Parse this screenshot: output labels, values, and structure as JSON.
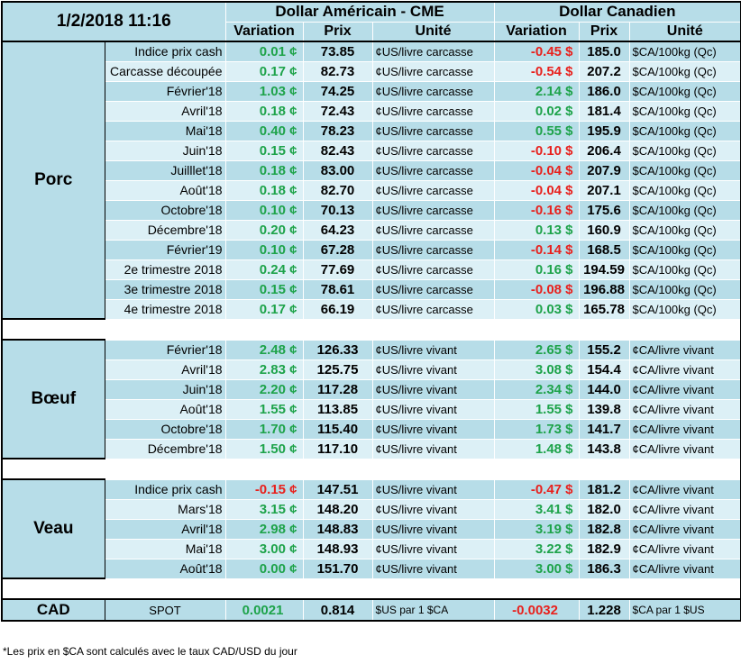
{
  "header": {
    "date": "1/2/2018 11:16",
    "us_group": "Dollar Américain - CME",
    "ca_group": "Dollar Canadien",
    "col_variation": "Variation",
    "col_prix": "Prix",
    "col_unite": "Unité"
  },
  "colors": {
    "row_dark": "#b7dde8",
    "row_light": "#dcf0f6",
    "positive": "#1ea34a",
    "negative": "#e8211d"
  },
  "sections": [
    {
      "name": "Porc",
      "rows": [
        {
          "label": "Indice prix cash",
          "us_var": "0.01 ¢",
          "us_prix": "73.85",
          "us_unit": "¢US/livre carcasse",
          "ca_var": "-0.45 $",
          "ca_prix": "185.0",
          "ca_unit": "$CA/100kg (Qc)"
        },
        {
          "label": "Carcasse découpée",
          "us_var": "0.17 ¢",
          "us_prix": "82.73",
          "us_unit": "¢US/livre carcasse",
          "ca_var": "-0.54 $",
          "ca_prix": "207.2",
          "ca_unit": "$CA/100kg (Qc)"
        },
        {
          "label": "Février'18",
          "us_var": "1.03 ¢",
          "us_prix": "74.25",
          "us_unit": "¢US/livre carcasse",
          "ca_var": "2.14 $",
          "ca_prix": "186.0",
          "ca_unit": "$CA/100kg (Qc)"
        },
        {
          "label": "Avril'18",
          "us_var": "0.18 ¢",
          "us_prix": "72.43",
          "us_unit": "¢US/livre carcasse",
          "ca_var": "0.02 $",
          "ca_prix": "181.4",
          "ca_unit": "$CA/100kg (Qc)"
        },
        {
          "label": "Mai'18",
          "us_var": "0.40 ¢",
          "us_prix": "78.23",
          "us_unit": "¢US/livre carcasse",
          "ca_var": "0.55 $",
          "ca_prix": "195.9",
          "ca_unit": "$CA/100kg (Qc)"
        },
        {
          "label": "Juin'18",
          "us_var": "0.15 ¢",
          "us_prix": "82.43",
          "us_unit": "¢US/livre carcasse",
          "ca_var": "-0.10 $",
          "ca_prix": "206.4",
          "ca_unit": "$CA/100kg (Qc)"
        },
        {
          "label": "Juilllet'18",
          "us_var": "0.18 ¢",
          "us_prix": "83.00",
          "us_unit": "¢US/livre carcasse",
          "ca_var": "-0.04 $",
          "ca_prix": "207.9",
          "ca_unit": "$CA/100kg (Qc)"
        },
        {
          "label": "Août'18",
          "us_var": "0.18 ¢",
          "us_prix": "82.70",
          "us_unit": "¢US/livre carcasse",
          "ca_var": "-0.04 $",
          "ca_prix": "207.1",
          "ca_unit": "$CA/100kg (Qc)"
        },
        {
          "label": "Octobre'18",
          "us_var": "0.10 ¢",
          "us_prix": "70.13",
          "us_unit": "¢US/livre carcasse",
          "ca_var": "-0.16 $",
          "ca_prix": "175.6",
          "ca_unit": "$CA/100kg (Qc)"
        },
        {
          "label": "Décembre'18",
          "us_var": "0.20 ¢",
          "us_prix": "64.23",
          "us_unit": "¢US/livre carcasse",
          "ca_var": "0.13 $",
          "ca_prix": "160.9",
          "ca_unit": "$CA/100kg (Qc)"
        },
        {
          "label": "Février'19",
          "us_var": "0.10 ¢",
          "us_prix": "67.28",
          "us_unit": "¢US/livre carcasse",
          "ca_var": "-0.14 $",
          "ca_prix": "168.5",
          "ca_unit": "$CA/100kg (Qc)"
        },
        {
          "label": "2e trimestre 2018",
          "us_var": "0.24 ¢",
          "us_prix": "77.69",
          "us_unit": "¢US/livre carcasse",
          "ca_var": "0.16 $",
          "ca_prix": "194.59",
          "ca_unit": "$CA/100kg (Qc)"
        },
        {
          "label": "3e trimestre 2018",
          "us_var": "0.15 ¢",
          "us_prix": "78.61",
          "us_unit": "¢US/livre carcasse",
          "ca_var": "-0.08 $",
          "ca_prix": "196.88",
          "ca_unit": "$CA/100kg (Qc)"
        },
        {
          "label": "4e trimestre 2018",
          "us_var": "0.17 ¢",
          "us_prix": "66.19",
          "us_unit": "¢US/livre carcasse",
          "ca_var": "0.03 $",
          "ca_prix": "165.78",
          "ca_unit": "$CA/100kg (Qc)"
        }
      ]
    },
    {
      "name": "Bœuf",
      "rows": [
        {
          "label": "Février'18",
          "us_var": "2.48 ¢",
          "us_prix": "126.33",
          "us_unit": "¢US/livre vivant",
          "ca_var": "2.65 $",
          "ca_prix": "155.2",
          "ca_unit": "¢CA/livre vivant"
        },
        {
          "label": "Avril'18",
          "us_var": "2.83 ¢",
          "us_prix": "125.75",
          "us_unit": "¢US/livre vivant",
          "ca_var": "3.08 $",
          "ca_prix": "154.4",
          "ca_unit": "¢CA/livre vivant"
        },
        {
          "label": "Juin'18",
          "us_var": "2.20 ¢",
          "us_prix": "117.28",
          "us_unit": "¢US/livre vivant",
          "ca_var": "2.34 $",
          "ca_prix": "144.0",
          "ca_unit": "¢CA/livre vivant"
        },
        {
          "label": "Août'18",
          "us_var": "1.55 ¢",
          "us_prix": "113.85",
          "us_unit": "¢US/livre vivant",
          "ca_var": "1.55 $",
          "ca_prix": "139.8",
          "ca_unit": "¢CA/livre vivant"
        },
        {
          "label": "Octobre'18",
          "us_var": "1.70 ¢",
          "us_prix": "115.40",
          "us_unit": "¢US/livre vivant",
          "ca_var": "1.73 $",
          "ca_prix": "141.7",
          "ca_unit": "¢CA/livre vivant"
        },
        {
          "label": "Décembre'18",
          "us_var": "1.50 ¢",
          "us_prix": "117.10",
          "us_unit": "¢US/livre vivant",
          "ca_var": "1.48 $",
          "ca_prix": "143.8",
          "ca_unit": "¢CA/livre vivant"
        }
      ]
    },
    {
      "name": "Veau",
      "rows": [
        {
          "label": "Indice prix cash",
          "us_var": "-0.15 ¢",
          "us_prix": "147.51",
          "us_unit": "¢US/livre vivant",
          "ca_var": "-0.47 $",
          "ca_prix": "181.2",
          "ca_unit": "¢CA/livre vivant"
        },
        {
          "label": "Mars'18",
          "us_var": "3.15 ¢",
          "us_prix": "148.20",
          "us_unit": "¢US/livre vivant",
          "ca_var": "3.41 $",
          "ca_prix": "182.0",
          "ca_unit": "¢CA/livre vivant"
        },
        {
          "label": "Avril'18",
          "us_var": "2.98 ¢",
          "us_prix": "148.83",
          "us_unit": "¢US/livre vivant",
          "ca_var": "3.19 $",
          "ca_prix": "182.8",
          "ca_unit": "¢CA/livre vivant"
        },
        {
          "label": "Mai'18",
          "us_var": "3.00 ¢",
          "us_prix": "148.93",
          "us_unit": "¢US/livre vivant",
          "ca_var": "3.22 $",
          "ca_prix": "182.9",
          "ca_unit": "¢CA/livre vivant"
        },
        {
          "label": "Août'18",
          "us_var": "0.00 ¢",
          "us_prix": "151.70",
          "us_unit": "¢US/livre vivant",
          "ca_var": "3.00 $",
          "ca_prix": "186.3",
          "ca_unit": "¢CA/livre vivant"
        }
      ]
    }
  ],
  "cad": {
    "name": "CAD",
    "label": "SPOT",
    "us_var": "0.0021",
    "us_prix": "0.814",
    "us_unit": "$US par 1 $CA",
    "ca_var": "-0.0032",
    "ca_prix": "1.228",
    "ca_unit": "$CA par 1 $US"
  },
  "footnote": "*Les  prix en $CA sont calculés avec le taux CAD/USD du jour"
}
